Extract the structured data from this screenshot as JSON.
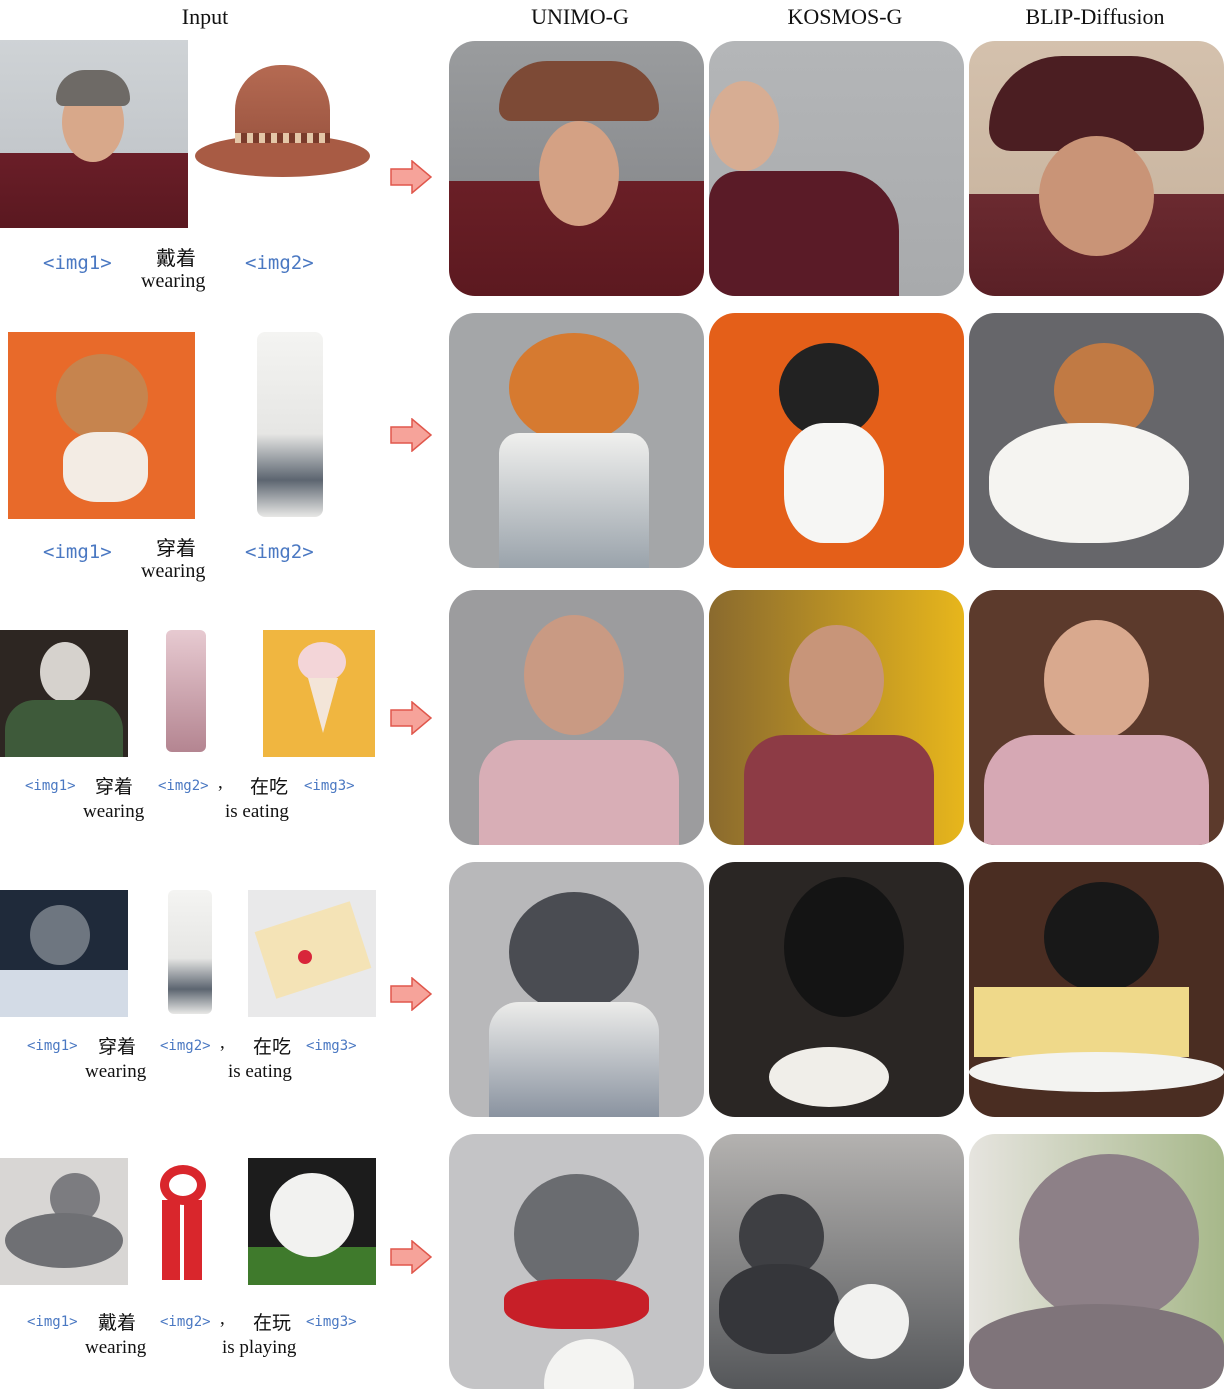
{
  "headers": {
    "input": "Input",
    "unimo": "UNIMO-G",
    "kosmos": "KOSMOS-G",
    "blip": "BLIP-Diffusion"
  },
  "rows": [
    {
      "tags": [
        "<img1>",
        "<img2>"
      ],
      "verb_zh": "戴着",
      "verb_en": "wearing"
    },
    {
      "tags": [
        "<img1>",
        "<img2>"
      ],
      "verb_zh": "穿着",
      "verb_en": "wearing"
    },
    {
      "tags": [
        "<img1>",
        "<img2>",
        "<img3>"
      ],
      "verb_zh": "穿着",
      "verb_en": "wearing",
      "comma": ",",
      "verb2_zh": "在吃",
      "verb2_en": "is eating"
    },
    {
      "tags": [
        "<img1>",
        "<img2>",
        "<img3>"
      ],
      "verb_zh": "穿着",
      "verb_en": "wearing",
      "comma": ",",
      "verb2_zh": "在吃",
      "verb2_en": "is eating"
    },
    {
      "tags": [
        "<img1>",
        "<img2>",
        "<img3>"
      ],
      "verb_zh": "戴着",
      "verb_en": "wearing",
      "comma": ",",
      "verb2_zh": "在玩",
      "verb2_en": "is playing"
    }
  ],
  "colors": {
    "tag": "#4a78c2",
    "arrow_fill": "#f6a39a",
    "arrow_stroke": "#e0574c"
  }
}
